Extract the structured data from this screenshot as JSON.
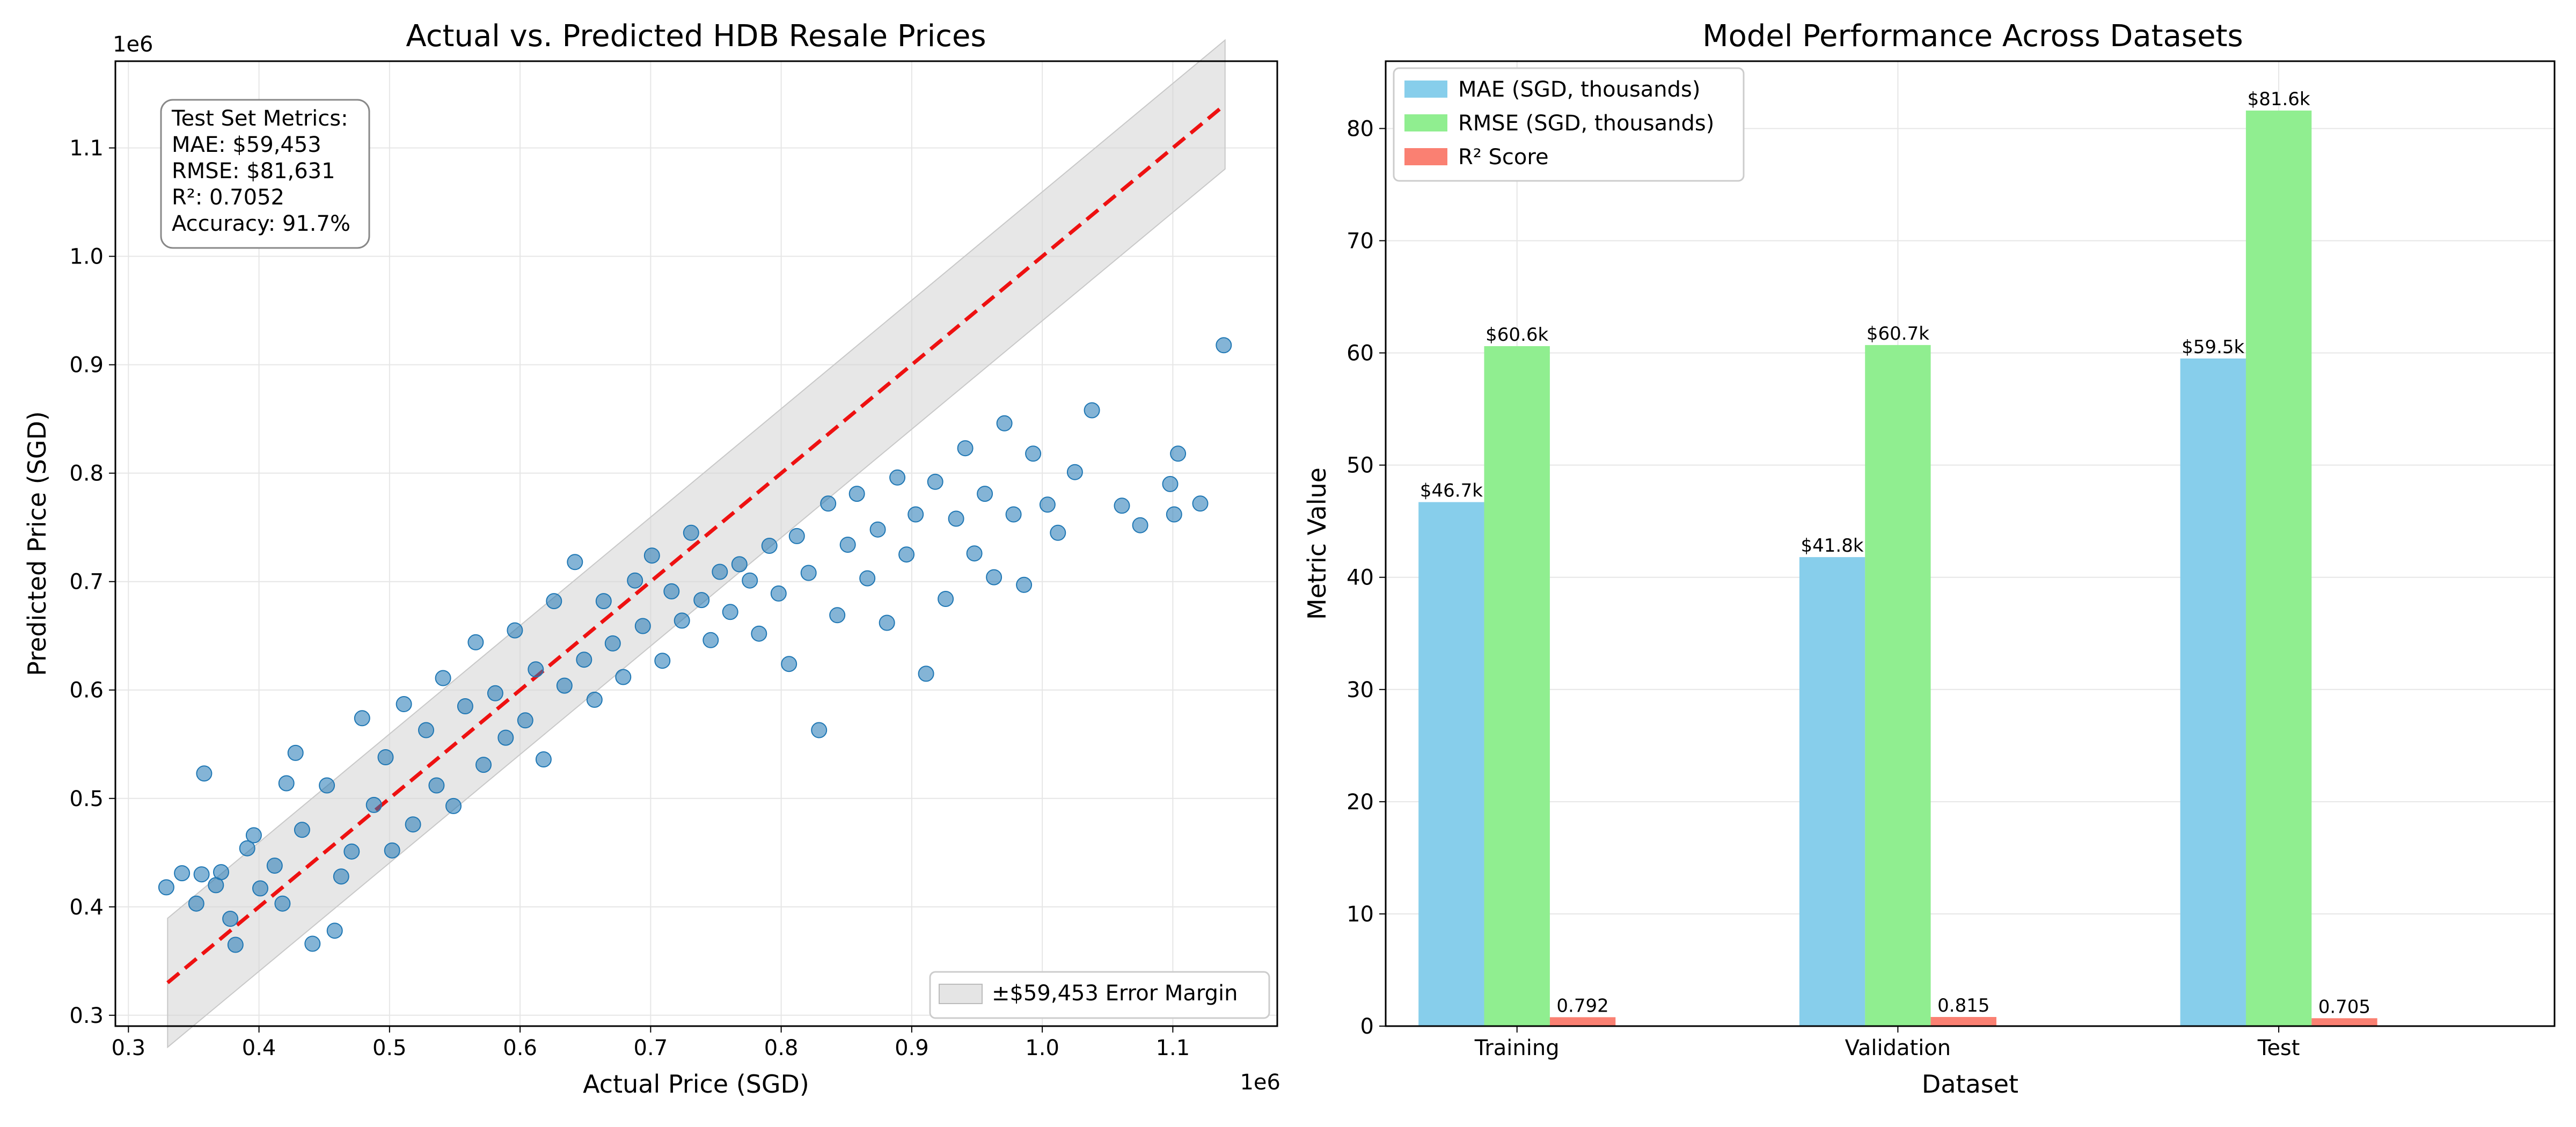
{
  "colors": {
    "scatter": "#1f77b4",
    "ideal_line": "#ee1111",
    "band": "#d3d3d3",
    "mae": "#87ceeb",
    "rmse": "#90ee90",
    "r2": "#fa8072"
  },
  "chart_data": [
    {
      "type": "scatter",
      "title": "Actual vs. Predicted HDB Resale Prices",
      "xlabel": "Actual Price (SGD)",
      "ylabel": "Predicted Price (SGD)",
      "x_offset_label": "1e6",
      "y_offset_label": "1e6",
      "xlim": [
        0.29,
        1.18
      ],
      "ylim": [
        0.29,
        1.18
      ],
      "xticks": [
        0.3,
        0.4,
        0.5,
        0.6,
        0.7,
        0.8,
        0.9,
        1.0,
        1.1
      ],
      "xtick_labels": [
        "0.3",
        "0.4",
        "0.5",
        "0.6",
        "0.7",
        "0.8",
        "0.9",
        "1.0",
        "1.1"
      ],
      "yticks": [
        0.3,
        0.4,
        0.5,
        0.6,
        0.7,
        0.8,
        0.9,
        1.0,
        1.1
      ],
      "ytick_labels": [
        "0.3",
        "0.4",
        "0.5",
        "0.6",
        "0.7",
        "0.8",
        "0.9",
        "1.0",
        "1.1"
      ],
      "grid": true,
      "ideal_line": {
        "from": [
          0.33,
          0.33
        ],
        "to": [
          1.14,
          1.14
        ],
        "style": "dashed"
      },
      "error_margin": 0.059453,
      "legend": {
        "label": "±$59,453 Error Margin",
        "position": "lower right"
      },
      "metrics_box": {
        "lines": [
          "Test Set Metrics:",
          "MAE: $59,453",
          "RMSE: $81,631",
          "R²: 0.7052",
          "Accuracy: 91.7%"
        ],
        "position": "upper left"
      },
      "points": [
        [
          0.329,
          0.418
        ],
        [
          0.341,
          0.431
        ],
        [
          0.352,
          0.403
        ],
        [
          0.356,
          0.43
        ],
        [
          0.358,
          0.523
        ],
        [
          0.367,
          0.42
        ],
        [
          0.371,
          0.432
        ],
        [
          0.378,
          0.389
        ],
        [
          0.382,
          0.365
        ],
        [
          0.391,
          0.454
        ],
        [
          0.396,
          0.466
        ],
        [
          0.401,
          0.417
        ],
        [
          0.412,
          0.438
        ],
        [
          0.418,
          0.403
        ],
        [
          0.421,
          0.514
        ],
        [
          0.428,
          0.542
        ],
        [
          0.433,
          0.471
        ],
        [
          0.441,
          0.366
        ],
        [
          0.452,
          0.512
        ],
        [
          0.458,
          0.378
        ],
        [
          0.463,
          0.428
        ],
        [
          0.471,
          0.451
        ],
        [
          0.479,
          0.574
        ],
        [
          0.488,
          0.494
        ],
        [
          0.497,
          0.538
        ],
        [
          0.502,
          0.452
        ],
        [
          0.511,
          0.587
        ],
        [
          0.518,
          0.476
        ],
        [
          0.528,
          0.563
        ],
        [
          0.536,
          0.512
        ],
        [
          0.541,
          0.611
        ],
        [
          0.549,
          0.493
        ],
        [
          0.558,
          0.585
        ],
        [
          0.566,
          0.644
        ],
        [
          0.572,
          0.531
        ],
        [
          0.581,
          0.597
        ],
        [
          0.589,
          0.556
        ],
        [
          0.596,
          0.655
        ],
        [
          0.604,
          0.572
        ],
        [
          0.612,
          0.619
        ],
        [
          0.618,
          0.536
        ],
        [
          0.626,
          0.682
        ],
        [
          0.634,
          0.604
        ],
        [
          0.642,
          0.718
        ],
        [
          0.649,
          0.628
        ],
        [
          0.657,
          0.591
        ],
        [
          0.664,
          0.682
        ],
        [
          0.671,
          0.643
        ],
        [
          0.679,
          0.612
        ],
        [
          0.688,
          0.701
        ],
        [
          0.694,
          0.659
        ],
        [
          0.701,
          0.724
        ],
        [
          0.709,
          0.627
        ],
        [
          0.716,
          0.691
        ],
        [
          0.724,
          0.664
        ],
        [
          0.731,
          0.745
        ],
        [
          0.739,
          0.683
        ],
        [
          0.746,
          0.646
        ],
        [
          0.753,
          0.709
        ],
        [
          0.761,
          0.672
        ],
        [
          0.768,
          0.716
        ],
        [
          0.776,
          0.701
        ],
        [
          0.783,
          0.652
        ],
        [
          0.791,
          0.733
        ],
        [
          0.798,
          0.689
        ],
        [
          0.806,
          0.624
        ],
        [
          0.812,
          0.742
        ],
        [
          0.821,
          0.708
        ],
        [
          0.829,
          0.563
        ],
        [
          0.836,
          0.772
        ],
        [
          0.843,
          0.669
        ],
        [
          0.851,
          0.734
        ],
        [
          0.858,
          0.781
        ],
        [
          0.866,
          0.703
        ],
        [
          0.874,
          0.748
        ],
        [
          0.881,
          0.662
        ],
        [
          0.889,
          0.796
        ],
        [
          0.896,
          0.725
        ],
        [
          0.903,
          0.762
        ],
        [
          0.911,
          0.615
        ],
        [
          0.918,
          0.792
        ],
        [
          0.926,
          0.684
        ],
        [
          0.934,
          0.758
        ],
        [
          0.941,
          0.823
        ],
        [
          0.948,
          0.726
        ],
        [
          0.956,
          0.781
        ],
        [
          0.963,
          0.704
        ],
        [
          0.971,
          0.846
        ],
        [
          0.978,
          0.762
        ],
        [
          0.986,
          0.697
        ],
        [
          0.993,
          0.818
        ],
        [
          1.004,
          0.771
        ],
        [
          1.012,
          0.745
        ],
        [
          1.025,
          0.801
        ],
        [
          1.038,
          0.858
        ],
        [
          1.061,
          0.77
        ],
        [
          1.075,
          0.752
        ],
        [
          1.098,
          0.79
        ],
        [
          1.101,
          0.762
        ],
        [
          1.104,
          0.818
        ],
        [
          1.121,
          0.772
        ],
        [
          1.139,
          0.918
        ]
      ]
    },
    {
      "type": "bar",
      "title": "Model Performance Across Datasets",
      "xlabel": "Dataset",
      "ylabel": "Metric Value",
      "categories": [
        "Training",
        "Validation",
        "Test"
      ],
      "ylim": [
        0,
        86
      ],
      "yticks": [
        0,
        10,
        20,
        30,
        40,
        50,
        60,
        70,
        80
      ],
      "grid": true,
      "legend_position": "upper left",
      "series": [
        {
          "name": "MAE (SGD, thousands)",
          "values": [
            46.7,
            41.8,
            59.5
          ],
          "labels": [
            "$46.7k",
            "$41.8k",
            "$59.5k"
          ]
        },
        {
          "name": "RMSE (SGD, thousands)",
          "values": [
            60.6,
            60.7,
            81.6
          ],
          "labels": [
            "$60.6k",
            "$60.7k",
            "$81.6k"
          ]
        },
        {
          "name": "R² Score",
          "values": [
            0.792,
            0.815,
            0.705
          ],
          "labels": [
            "0.792",
            "0.815",
            "0.705"
          ]
        }
      ]
    }
  ]
}
